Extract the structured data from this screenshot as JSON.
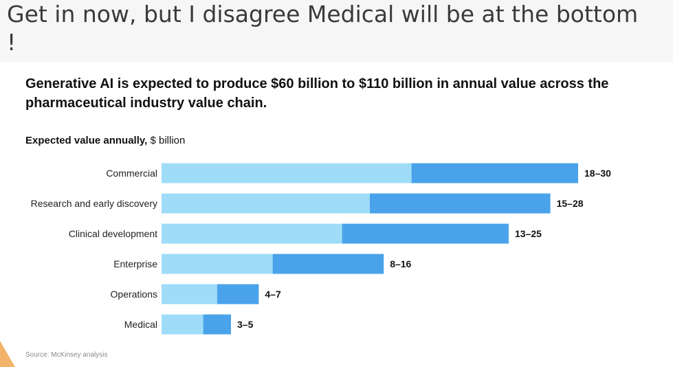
{
  "slide": {
    "title": "Get in now, but I disagree Medical will be at the bottom !"
  },
  "chart_data": {
    "type": "bar",
    "orientation": "horizontal",
    "stacked_range": true,
    "title": "Generative AI is expected to produce $60 billion to $110 billion in annual value across the pharmaceutical industry value chain.",
    "subtitle_bold": "Expected value annually,",
    "subtitle_rest": " $ billion",
    "categories": [
      "Commercial",
      "Research and early discovery",
      "Clinical development",
      "Enterprise",
      "Operations",
      "Medical"
    ],
    "low": [
      18,
      15,
      13,
      8,
      4,
      3
    ],
    "high": [
      30,
      28,
      25,
      16,
      7,
      5
    ],
    "labels": [
      "18–30",
      "15–28",
      "13–25",
      "8–16",
      "4–7",
      "3–5"
    ],
    "colors": {
      "low": "#9fdcf7",
      "high": "#4aa3ea"
    },
    "xlim": [
      0,
      30
    ],
    "grid": false,
    "source": "Source: McKinsey analysis"
  }
}
